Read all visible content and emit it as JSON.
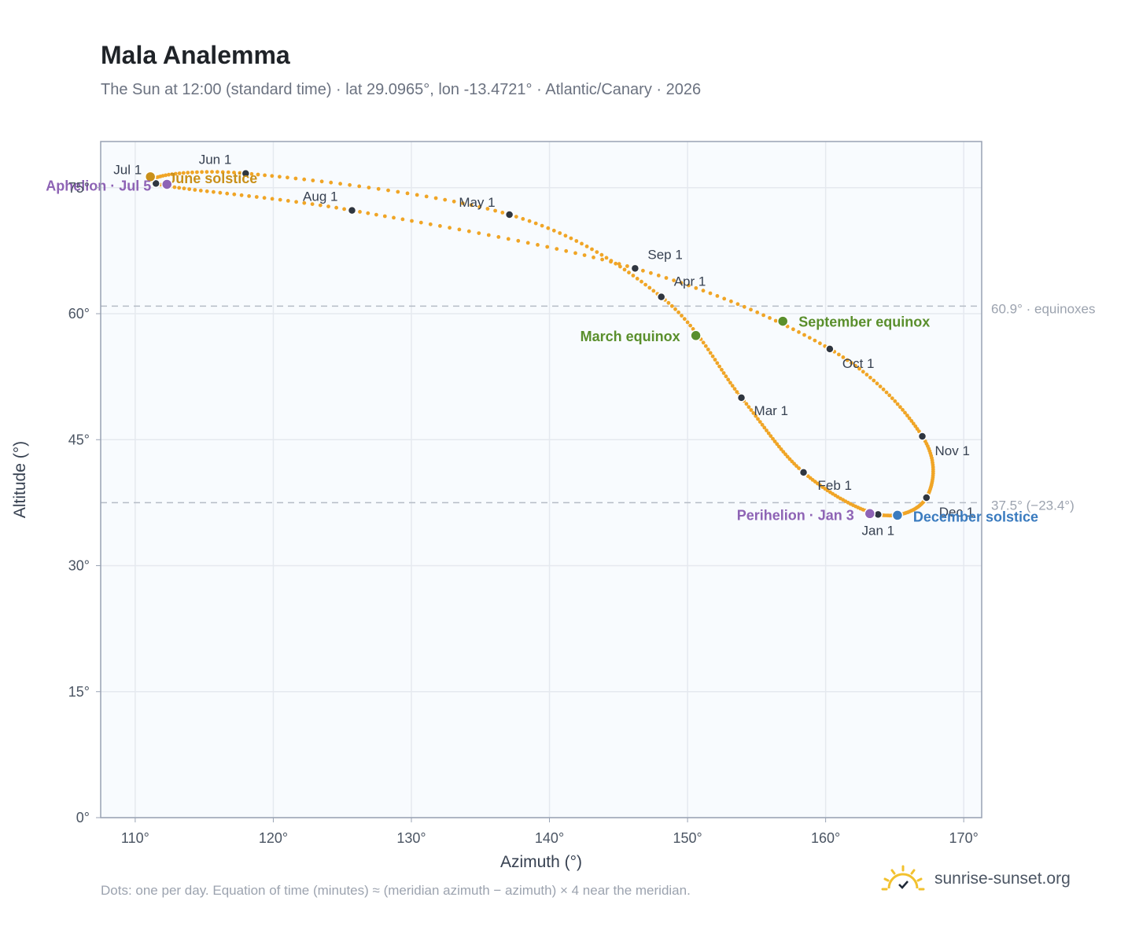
{
  "title": "Mala Analemma",
  "subtitle": "The Sun at 12:00 (standard time) · lat 29.0965°, lon -13.4721° · Atlantic/Canary · 2026",
  "footnote": "Dots: one per day. Equation of time (minutes) ≈ (meridian azimuth − azimuth) × 4 near the meridian.",
  "brand": {
    "text": "sunrise-sunset.org",
    "icon": "sun-logo-icon"
  },
  "colors": {
    "curve": "#f0a526",
    "month_dot": "#2f3640",
    "equinox": "#5a8f2c",
    "june": "#c9901a",
    "december": "#3a7bbf",
    "apsis": "#8e63b5",
    "grid": "#e5e9ef",
    "plot_bg": "#f8fbfe",
    "frame": "#98a2b3",
    "refline": "#b5bcc6"
  },
  "chart_data": {
    "type": "scatter",
    "title": "Mala Analemma",
    "xlabel": "Azimuth (°)",
    "ylabel": "Altitude (°)",
    "xlim": [
      107.5,
      171.3
    ],
    "ylim": [
      0,
      80.5
    ],
    "x_ticks": [
      110,
      120,
      130,
      140,
      150,
      160,
      170
    ],
    "x_tick_labels": [
      "110°",
      "120°",
      "130°",
      "140°",
      "150°",
      "160°",
      "170°"
    ],
    "y_ticks": [
      0,
      15,
      30,
      45,
      60,
      75
    ],
    "y_tick_labels": [
      "0°",
      "15°",
      "30°",
      "45°",
      "60°",
      "75°"
    ],
    "grid": true,
    "series_note": "one dot per day",
    "month_points": [
      {
        "label": "Jan 1",
        "az": 163.8,
        "alt": 36.1
      },
      {
        "label": "Feb 1",
        "az": 158.4,
        "alt": 41.1
      },
      {
        "label": "Mar 1",
        "az": 153.9,
        "alt": 50.0
      },
      {
        "label": "Apr 1",
        "az": 148.1,
        "alt": 62.0
      },
      {
        "label": "May 1",
        "az": 137.1,
        "alt": 71.8
      },
      {
        "label": "Jun 1",
        "az": 118.0,
        "alt": 76.7
      },
      {
        "label": "Jul 1",
        "az": 111.5,
        "alt": 75.5
      },
      {
        "label": "Aug 1",
        "az": 125.7,
        "alt": 72.3
      },
      {
        "label": "Sep 1",
        "az": 146.2,
        "alt": 65.4
      },
      {
        "label": "Oct 1",
        "az": 160.3,
        "alt": 55.8
      },
      {
        "label": "Nov 1",
        "az": 167.0,
        "alt": 45.4
      },
      {
        "label": "Dec 1",
        "az": 167.3,
        "alt": 38.1
      }
    ],
    "events": [
      {
        "label": "March equinox",
        "az": 150.6,
        "alt": 57.4,
        "color": "#5a8f2c"
      },
      {
        "label": "September equinox",
        "az": 156.9,
        "alt": 59.1,
        "color": "#5a8f2c"
      },
      {
        "label": "June solstice",
        "az": 111.1,
        "alt": 76.3,
        "color": "#c9901a"
      },
      {
        "label": "December solstice",
        "az": 165.2,
        "alt": 36.0,
        "color": "#3a7bbf"
      },
      {
        "label": "Perihelion · Jan 3",
        "az": 163.2,
        "alt": 36.2,
        "color": "#8e63b5"
      },
      {
        "label": "Aphelion · Jul 5",
        "az": 112.3,
        "alt": 75.4,
        "color": "#8e63b5"
      }
    ],
    "reference_lines": [
      {
        "alt": 60.9,
        "label": "60.9° · equinoxes"
      },
      {
        "alt": 37.5,
        "label": "37.5° (−23.4°)"
      }
    ]
  }
}
